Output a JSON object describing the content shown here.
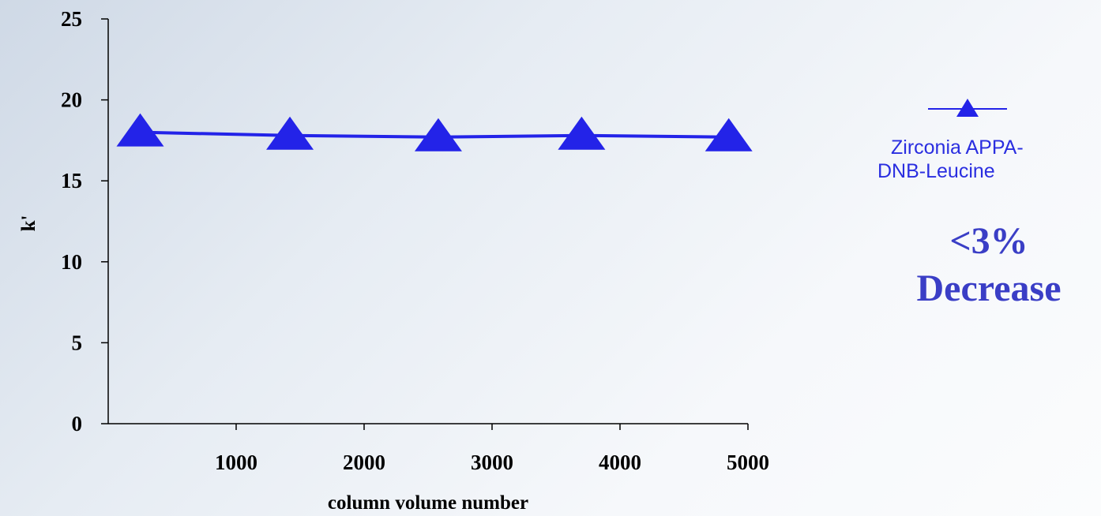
{
  "chart_data": {
    "type": "line",
    "x": [
      250,
      1420,
      2580,
      3700,
      4850
    ],
    "x_ticks": [
      "1000",
      "2000",
      "3000",
      "4000",
      "5000"
    ],
    "x_tick_values": [
      1000,
      2000,
      3000,
      4000,
      5000
    ],
    "xlim": [
      0,
      5000
    ],
    "y_ticks": [
      "0",
      "5",
      "10",
      "15",
      "20",
      "25"
    ],
    "y_tick_values": [
      0,
      5,
      10,
      15,
      20,
      25
    ],
    "ylim": [
      0,
      25
    ],
    "xlabel": "column volume number",
    "ylabel": "k'",
    "grid": false,
    "legend_position": "right",
    "series": [
      {
        "name": "Zirconia APPA-DNB-Leucine",
        "name_lines": [
          "Zirconia APPA-",
          "DNB-Leucine"
        ],
        "values": [
          18.0,
          17.8,
          17.7,
          17.8,
          17.7
        ],
        "color": "#2323e8",
        "marker": "triangle"
      }
    ],
    "annotation_lines": [
      "<3%",
      "Decrease"
    ],
    "annotation_color": "#3a3ec6"
  }
}
